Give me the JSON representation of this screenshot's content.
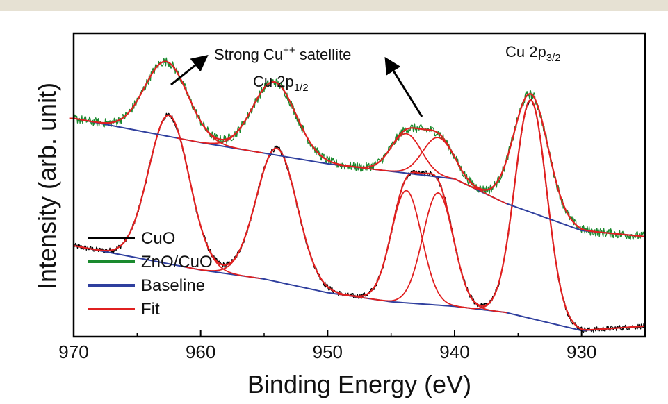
{
  "chart_data": {
    "type": "line",
    "xlabel": "Binding Energy (eV)",
    "ylabel": "Intensity (arb. unit)",
    "xlim": [
      970,
      925
    ],
    "x_reversed": true,
    "x_ticks": [
      "970",
      "960",
      "950",
      "940",
      "930"
    ],
    "y_ticks": [],
    "grid": false,
    "legend_position": "bottom-left",
    "legend": [
      {
        "label": "CuO",
        "color": "#000000"
      },
      {
        "label": "ZnO/CuO",
        "color": "#1a8a2e"
      },
      {
        "label": "Baseline",
        "color": "#2f3f9e"
      },
      {
        "label": "Fit",
        "color": "#e02020"
      }
    ],
    "annotations": {
      "satellite_text": "Strong Cu",
      "satellite_sup": "++",
      "satellite_rest": " satellite",
      "p12_main": "Cu 2p",
      "p12_sub": "1/2",
      "p32_main": "Cu 2p",
      "p32_sub": "3/2"
    },
    "series": [
      {
        "name": "CuO",
        "color": "#000000",
        "baseline_points": [
          [
            970,
            0.3
          ],
          [
            960,
            0.22
          ],
          [
            955,
            0.19
          ],
          [
            950,
            0.145
          ],
          [
            945,
            0.115
          ],
          [
            940,
            0.1
          ],
          [
            936,
            0.08
          ],
          [
            930,
            0.02
          ],
          [
            925,
            0.035
          ]
        ],
        "peaks": [
          {
            "center": 962.5,
            "height": 0.49,
            "width": 1.6
          },
          {
            "center": 954.0,
            "height": 0.44,
            "width": 1.6
          },
          {
            "center": 943.8,
            "height": 0.37,
            "width": 1.2
          },
          {
            "center": 941.3,
            "height": 0.37,
            "width": 1.2
          },
          {
            "center": 934.0,
            "height": 0.72,
            "width": 1.25
          }
        ]
      },
      {
        "name": "ZnO/CuO",
        "color": "#1a8a2e",
        "baseline_points": [
          [
            970,
            0.72
          ],
          [
            960,
            0.64
          ],
          [
            950,
            0.57
          ],
          [
            940,
            0.52
          ],
          [
            936,
            0.44
          ],
          [
            930,
            0.35
          ],
          [
            925,
            0.33
          ]
        ],
        "peaks": [
          {
            "center": 962.7,
            "height": 0.245,
            "width": 1.7
          },
          {
            "center": 954.2,
            "height": 0.24,
            "width": 1.7
          },
          {
            "center": 943.8,
            "height": 0.13,
            "width": 1.2
          },
          {
            "center": 941.3,
            "height": 0.13,
            "width": 1.2
          },
          {
            "center": 934.0,
            "height": 0.39,
            "width": 1.35
          }
        ]
      }
    ]
  }
}
